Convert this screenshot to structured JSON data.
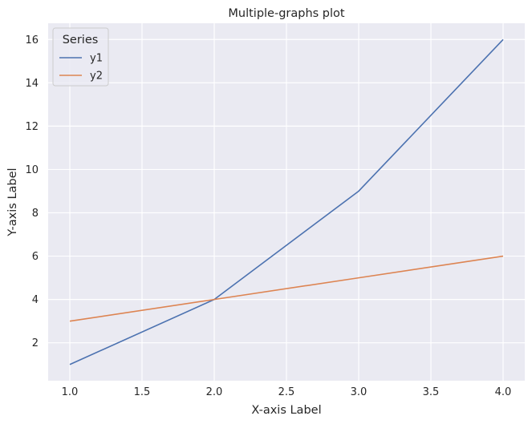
{
  "chart_data": {
    "type": "line",
    "title": "Multiple-graphs plot",
    "xlabel": "X-axis Label",
    "ylabel": "Y-axis Label",
    "x": [
      1.0,
      2.0,
      3.0,
      4.0
    ],
    "series": [
      {
        "name": "y1",
        "values": [
          1,
          4,
          9,
          16
        ],
        "color": "#4c72b0"
      },
      {
        "name": "y2",
        "values": [
          3,
          4,
          5,
          6
        ],
        "color": "#dd8452"
      }
    ],
    "xlim": [
      0.85,
      4.15
    ],
    "ylim": [
      0.25,
      16.75
    ],
    "xticks": [
      "1.0",
      "1.5",
      "2.0",
      "2.5",
      "3.0",
      "3.5",
      "4.0"
    ],
    "yticks": [
      "2",
      "4",
      "6",
      "8",
      "10",
      "12",
      "14",
      "16"
    ],
    "grid": true,
    "legend": {
      "title": "Series",
      "position": "upper-left"
    },
    "colors": {
      "background": "#eaeaf2",
      "grid": "#ffffff"
    }
  }
}
